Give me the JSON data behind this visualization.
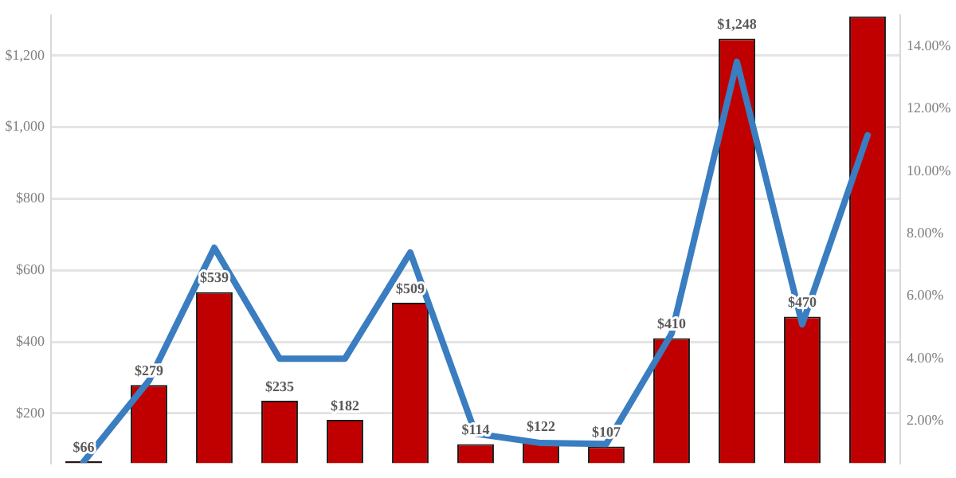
{
  "chart_data": {
    "type": "bar",
    "categories": [
      null,
      null,
      null,
      null,
      null,
      null,
      null,
      null,
      null,
      null,
      null,
      null,
      null
    ],
    "series": [
      {
        "color": "#c00000",
        "values": [
          66,
          279,
          539,
          235,
          182,
          509,
          114,
          122,
          107,
          410,
          1248,
          470,
          1310
        ],
        "value_labels": [
          "$66",
          "$279",
          "$539",
          "$235",
          "$182",
          "$509",
          "$114",
          "$122",
          "$107",
          "$410",
          "$1,248",
          "$470",
          null
        ]
      },
      {
        "type": "line",
        "axis": "y2",
        "color": "#3a7dc0",
        "values": [
          0.7,
          3.3,
          7.55,
          4.0,
          4.0,
          7.4,
          1.6,
          1.3,
          1.27,
          4.8,
          13.5,
          5.1,
          11.15
        ]
      }
    ],
    "ylim": [
      61,
      1314
    ],
    "yticks": [
      {
        "value": 200,
        "label": "$200"
      },
      {
        "value": 400,
        "label": "$400"
      },
      {
        "value": 600,
        "label": "$600"
      },
      {
        "value": 800,
        "label": "$800"
      },
      {
        "value": 1000,
        "label": "$1,000"
      },
      {
        "value": 1200,
        "label": "$1,200"
      }
    ],
    "y2lim": [
      0.66,
      15
    ],
    "y2ticks": [
      {
        "value": 2,
        "label": "2.00%"
      },
      {
        "value": 4,
        "label": "4.00%"
      },
      {
        "value": 6,
        "label": "6.00%"
      },
      {
        "value": 8,
        "label": "8.00%"
      },
      {
        "value": 10,
        "label": "10.00%"
      },
      {
        "value": 12,
        "label": "12.00%"
      },
      {
        "value": 14,
        "label": "14.00%"
      }
    ],
    "grid": "y",
    "legend": false,
    "marker": "none",
    "line_style": "solid"
  }
}
